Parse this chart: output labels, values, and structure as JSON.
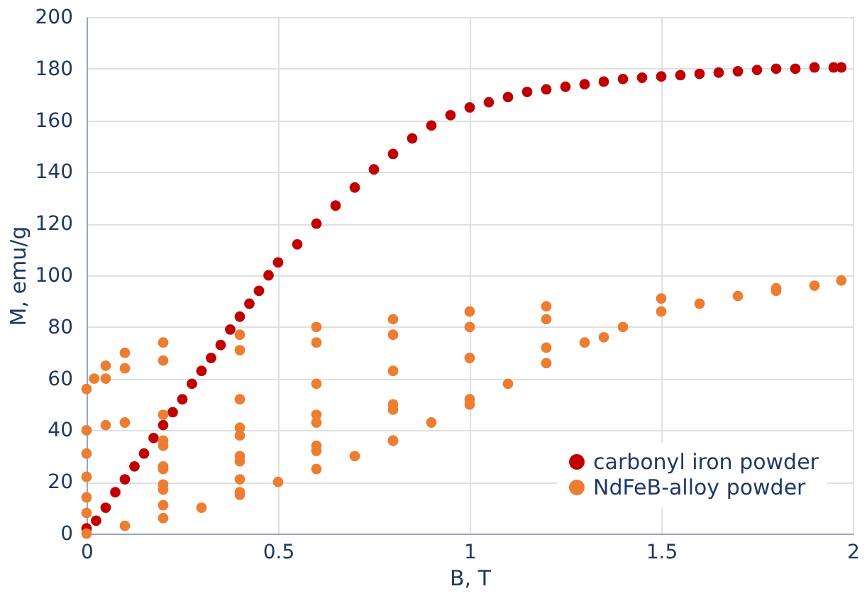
{
  "chart_data": {
    "type": "scatter",
    "xlabel": "B, T",
    "ylabel": "M, emu/g",
    "xlim": [
      0,
      2
    ],
    "xticks": [
      0,
      0.5,
      1,
      1.5,
      2
    ],
    "ylim": [
      0,
      200
    ],
    "yticks": [
      0,
      20,
      40,
      60,
      80,
      100,
      120,
      140,
      160,
      180,
      200
    ],
    "grid": true,
    "legend": "bottom right",
    "marker": "circle",
    "series": [
      {
        "name": "carbonyl iron powder",
        "color": "#c00000",
        "x": [
          0,
          0.025,
          0.05,
          0.075,
          0.1,
          0.125,
          0.15,
          0.175,
          0.2,
          0.225,
          0.25,
          0.275,
          0.3,
          0.325,
          0.35,
          0.375,
          0.4,
          0.425,
          0.45,
          0.475,
          0.5,
          0.55,
          0.6,
          0.65,
          0.7,
          0.75,
          0.8,
          0.85,
          0.9,
          0.95,
          1.0,
          1.05,
          1.1,
          1.15,
          1.2,
          1.25,
          1.3,
          1.35,
          1.4,
          1.45,
          1.5,
          1.55,
          1.6,
          1.65,
          1.7,
          1.75,
          1.8,
          1.85,
          1.9,
          1.95,
          1.97
        ],
        "values": [
          2,
          5,
          10,
          16,
          21,
          26,
          31,
          37,
          42,
          47,
          52,
          58,
          63,
          68,
          73,
          79,
          84,
          89,
          94,
          100,
          105,
          112,
          120,
          127,
          134,
          141,
          147,
          153,
          158,
          162,
          165,
          167,
          169,
          171,
          172,
          173,
          174,
          175,
          176,
          176.5,
          177,
          177.5,
          178,
          178.5,
          179,
          179.5,
          180,
          180,
          180.5,
          180.5,
          180.5
        ]
      },
      {
        "name": "NdFeB-alloy powder",
        "color": "#ed7d31",
        "x": [
          0,
          0.1,
          0.2,
          0.3,
          0.4,
          0.5,
          0.6,
          0.7,
          0.8,
          0.9,
          1.0,
          1.1,
          1.2,
          1.3,
          1.4,
          1.5,
          1.6,
          1.7,
          1.8,
          1.9,
          1.97,
          1.8,
          1.5,
          1.2,
          1.0,
          0.8,
          0.6,
          0.4,
          0.2,
          0.1,
          0.05,
          0.02,
          0,
          0.05,
          0.1,
          0.2,
          0.4,
          0.6,
          0.8,
          1.0,
          1.2,
          1.35,
          1.2,
          1.0,
          0.8,
          0.6,
          0.4,
          0.2,
          0.1,
          0.05,
          0,
          1.0,
          0.8,
          0.6,
          0.4,
          0.2,
          0,
          0.2,
          0.4,
          0.6,
          0.8,
          0.8,
          0.6,
          0.4,
          0.2,
          0,
          0.2,
          0.4,
          0.6,
          0.4,
          0.2,
          0,
          0.2,
          0.4,
          0.2,
          0
        ],
        "values": [
          0,
          3,
          6,
          10,
          15,
          20,
          25,
          30,
          36,
          43,
          50,
          58,
          66,
          74,
          80,
          86,
          89,
          92,
          94,
          96,
          98,
          95,
          91,
          88,
          86,
          83,
          80,
          77,
          74,
          70,
          65,
          60,
          56,
          60,
          64,
          67,
          71,
          74,
          77,
          80,
          83,
          76,
          72,
          68,
          63,
          58,
          52,
          46,
          43,
          42,
          40,
          52,
          48,
          43,
          38,
          34,
          31,
          36,
          41,
          46,
          50,
          36,
          32,
          28,
          25,
          22,
          26,
          30,
          34,
          21,
          17,
          14,
          19,
          16,
          11,
          8
        ]
      }
    ]
  }
}
